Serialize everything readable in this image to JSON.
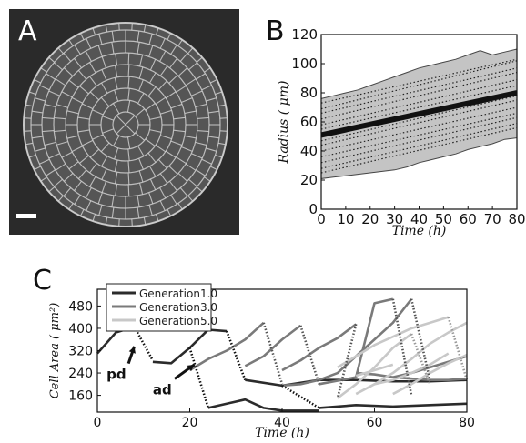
{
  "panels": {
    "a": {
      "letter": "A"
    },
    "b": {
      "letter": "B"
    },
    "c": {
      "letter": "C"
    }
  },
  "chart_data": [
    {
      "type": "line",
      "panel": "B",
      "xlabel": "Time (h)",
      "ylabel": "Radius ( μm)",
      "xlim": [
        0,
        80
      ],
      "ylim": [
        0,
        120
      ],
      "xticks": [
        0,
        10,
        20,
        30,
        40,
        50,
        60,
        70,
        80
      ],
      "yticks": [
        0,
        20,
        40,
        60,
        80,
        100,
        120
      ],
      "band": {
        "x": [
          0,
          5,
          10,
          15,
          20,
          25,
          30,
          35,
          40,
          45,
          50,
          55,
          60,
          65,
          70,
          75,
          80
        ],
        "upper": [
          76,
          78,
          80,
          82,
          85,
          88,
          91,
          94,
          97,
          99,
          101,
          103,
          106,
          109,
          106,
          108,
          110
        ],
        "lower": [
          21,
          22,
          23,
          24,
          25,
          26,
          27,
          29,
          32,
          34,
          36,
          38,
          41,
          43,
          45,
          48,
          49
        ]
      },
      "mean": {
        "x": [
          0,
          80
        ],
        "y": [
          51,
          80
        ]
      },
      "dotted_series": [
        {
          "x": [
            0,
            80
          ],
          "y": [
            73,
            103
          ]
        },
        {
          "x": [
            0,
            80
          ],
          "y": [
            69,
            102
          ]
        },
        {
          "x": [
            0,
            80
          ],
          "y": [
            66,
            97
          ]
        },
        {
          "x": [
            0,
            80
          ],
          "y": [
            62,
            94
          ]
        },
        {
          "x": [
            0,
            80
          ],
          "y": [
            58,
            89
          ]
        },
        {
          "x": [
            0,
            80
          ],
          "y": [
            55,
            85
          ]
        },
        {
          "x": [
            0,
            80
          ],
          "y": [
            47,
            78
          ]
        },
        {
          "x": [
            0,
            80
          ],
          "y": [
            44,
            75
          ]
        },
        {
          "x": [
            0,
            80
          ],
          "y": [
            40,
            70
          ]
        },
        {
          "x": [
            0,
            80
          ],
          "y": [
            36,
            66
          ]
        },
        {
          "x": [
            0,
            80
          ],
          "y": [
            32,
            63
          ]
        },
        {
          "x": [
            0,
            80
          ],
          "y": [
            28,
            59
          ]
        },
        {
          "x": [
            0,
            80
          ],
          "y": [
            25,
            56
          ]
        }
      ]
    },
    {
      "type": "line",
      "panel": "C",
      "xlabel": "Time (h)",
      "ylabel": "Cell Area ( μm²)",
      "xlim": [
        0,
        80
      ],
      "ylim": [
        100,
        540
      ],
      "xticks": [
        0,
        20,
        40,
        60,
        80
      ],
      "yticks": [
        160,
        240,
        320,
        400,
        480
      ],
      "legend": {
        "placement": "top-left",
        "entries": [
          {
            "label": "Generation1.0",
            "color": "#2b2b2b"
          },
          {
            "label": "Generation3.0",
            "color": "#7a7a7a"
          },
          {
            "label": "Generation5.0",
            "color": "#c8c8c8"
          }
        ]
      },
      "annotations": [
        {
          "text": "pd",
          "x": 2,
          "y": 235,
          "arrow_to": [
            8,
            335
          ]
        },
        {
          "text": "ad",
          "x": 12,
          "y": 180,
          "arrow_to": [
            21,
            270
          ]
        }
      ],
      "series": [
        {
          "name": "Generation1.0",
          "color": "#2b2b2b",
          "segments": [
            [
              [
                0,
                310
              ],
              [
                4,
                385
              ],
              [
                8,
                405
              ]
            ],
            [
              [
                12,
                280
              ],
              [
                16,
                275
              ],
              [
                20,
                330
              ],
              [
                24,
                395
              ],
              [
                28,
                390
              ]
            ],
            [
              [
                24,
                115
              ],
              [
                32,
                145
              ],
              [
                36,
                115
              ],
              [
                40,
                105
              ],
              [
                48,
                105
              ]
            ],
            [
              [
                32,
                215
              ],
              [
                40,
                195
              ],
              [
                48,
                215
              ],
              [
                56,
                215
              ],
              [
                64,
                210
              ],
              [
                72,
                210
              ],
              [
                80,
                215
              ]
            ],
            [
              [
                48,
                115
              ],
              [
                56,
                125
              ],
              [
                64,
                120
              ],
              [
                72,
                125
              ],
              [
                80,
                130
              ]
            ]
          ]
        },
        {
          "name": "Generation3.0",
          "color": "#7a7a7a",
          "segments": [
            [
              [
                20,
                250
              ],
              [
                24,
                290
              ],
              [
                28,
                320
              ],
              [
                32,
                360
              ],
              [
                36,
                420
              ]
            ],
            [
              [
                32,
                265
              ],
              [
                36,
                300
              ],
              [
                40,
                360
              ],
              [
                44,
                410
              ]
            ],
            [
              [
                40,
                250
              ],
              [
                44,
                285
              ],
              [
                48,
                330
              ],
              [
                52,
                365
              ],
              [
                56,
                415
              ]
            ],
            [
              [
                40,
                195
              ],
              [
                44,
                200
              ],
              [
                48,
                215
              ],
              [
                52,
                240
              ],
              [
                56,
                300
              ],
              [
                60,
                360
              ],
              [
                64,
                420
              ],
              [
                68,
                505
              ]
            ],
            [
              [
                48,
                200
              ],
              [
                56,
                225
              ],
              [
                60,
                490
              ],
              [
                64,
                505
              ]
            ],
            [
              [
                56,
                240
              ],
              [
                60,
                235
              ],
              [
                64,
                225
              ],
              [
                68,
                220
              ],
              [
                72,
                215
              ],
              [
                76,
                215
              ],
              [
                80,
                220
              ]
            ],
            [
              [
                64,
                225
              ],
              [
                68,
                240
              ],
              [
                72,
                260
              ],
              [
                76,
                280
              ],
              [
                80,
                300
              ]
            ]
          ]
        },
        {
          "name": "Generation5.0",
          "color": "#c8c8c8",
          "segments": [
            [
              [
                52,
                150
              ],
              [
                56,
                200
              ],
              [
                60,
                260
              ],
              [
                64,
                330
              ],
              [
                68,
                380
              ]
            ],
            [
              [
                52,
                260
              ],
              [
                56,
                300
              ],
              [
                60,
                340
              ],
              [
                64,
                370
              ],
              [
                68,
                400
              ],
              [
                72,
                420
              ],
              [
                76,
                440
              ]
            ],
            [
              [
                56,
                165
              ],
              [
                60,
                200
              ],
              [
                64,
                240
              ],
              [
                68,
                290
              ],
              [
                72,
                345
              ],
              [
                76,
                385
              ],
              [
                80,
                420
              ]
            ],
            [
              [
                60,
                200
              ],
              [
                64,
                215
              ],
              [
                68,
                240
              ],
              [
                72,
                270
              ],
              [
                76,
                310
              ]
            ],
            [
              [
                64,
                165
              ],
              [
                68,
                200
              ],
              [
                72,
                240
              ],
              [
                76,
                275
              ],
              [
                80,
                305
              ]
            ],
            [
              [
                56,
                230
              ],
              [
                60,
                250
              ],
              [
                64,
                270
              ]
            ]
          ]
        }
      ],
      "division_links": [
        {
          "color": "#111",
          "from": [
            8,
            405
          ],
          "to": [
            12,
            285
          ]
        },
        {
          "color": "#111",
          "from": [
            28,
            390
          ],
          "to": [
            32,
            215
          ]
        },
        {
          "color": "#111",
          "from": [
            20,
            330
          ],
          "to": [
            24,
            115
          ]
        },
        {
          "color": "#111",
          "from": [
            40,
            195
          ],
          "to": [
            48,
            115
          ]
        },
        {
          "color": "#555",
          "from": [
            36,
            420
          ],
          "to": [
            40,
            200
          ]
        },
        {
          "color": "#555",
          "from": [
            44,
            410
          ],
          "to": [
            48,
            200
          ]
        },
        {
          "color": "#555",
          "from": [
            68,
            505
          ],
          "to": [
            72,
            215
          ]
        },
        {
          "color": "#555",
          "from": [
            56,
            415
          ],
          "to": [
            52,
            150
          ]
        },
        {
          "color": "#555",
          "from": [
            64,
            505
          ],
          "to": [
            68,
            160
          ]
        },
        {
          "color": "#999",
          "from": [
            68,
            380
          ],
          "to": [
            72,
            200
          ]
        },
        {
          "color": "#999",
          "from": [
            76,
            440
          ],
          "to": [
            80,
            215
          ]
        }
      ]
    }
  ]
}
